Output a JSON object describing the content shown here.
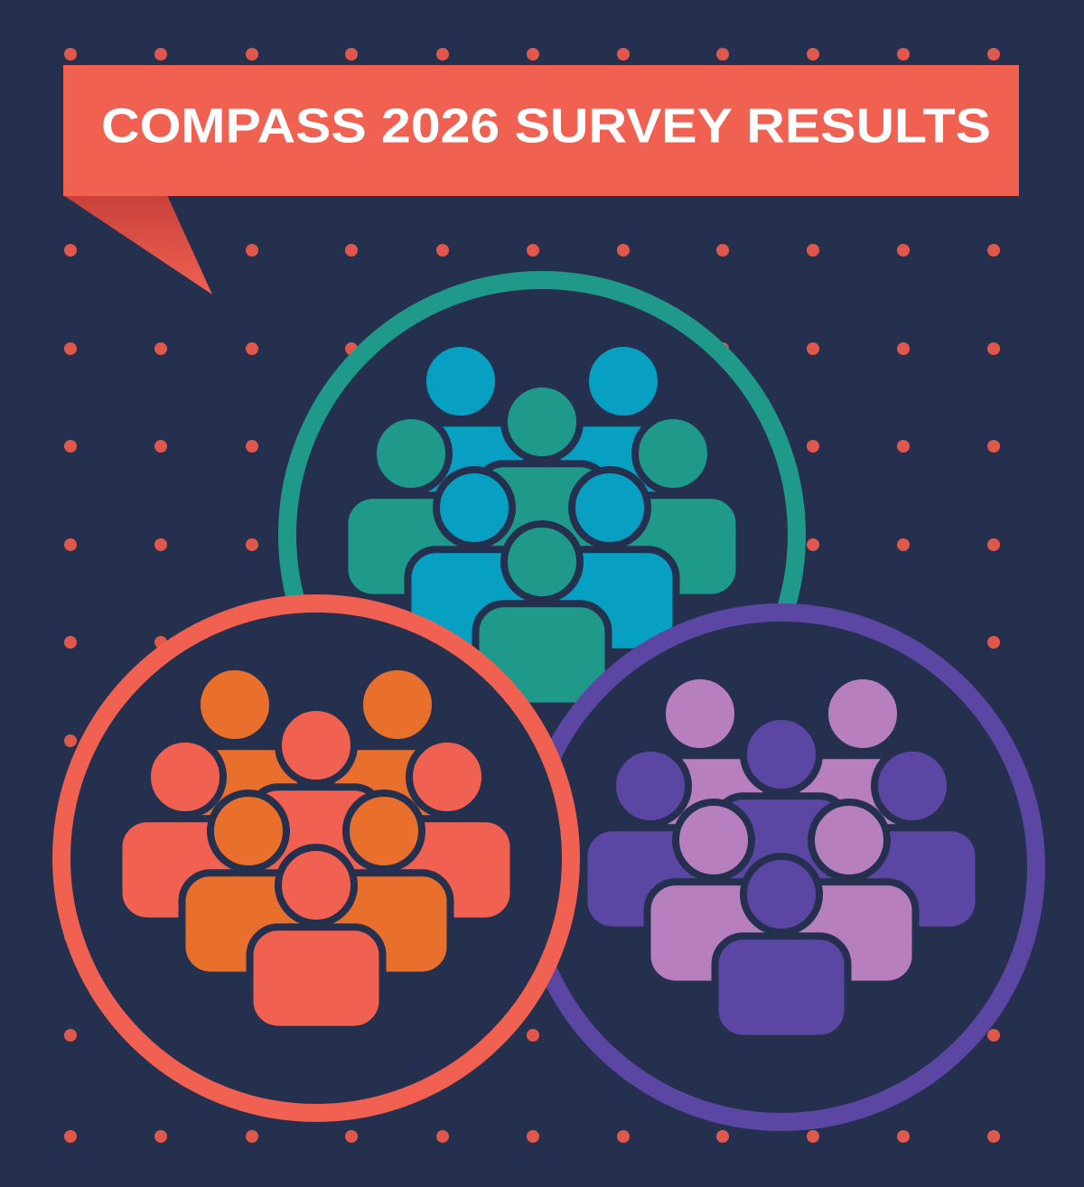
{
  "banner": {
    "title": "COMPASS 2026 SURVEY RESULTS"
  }
}
